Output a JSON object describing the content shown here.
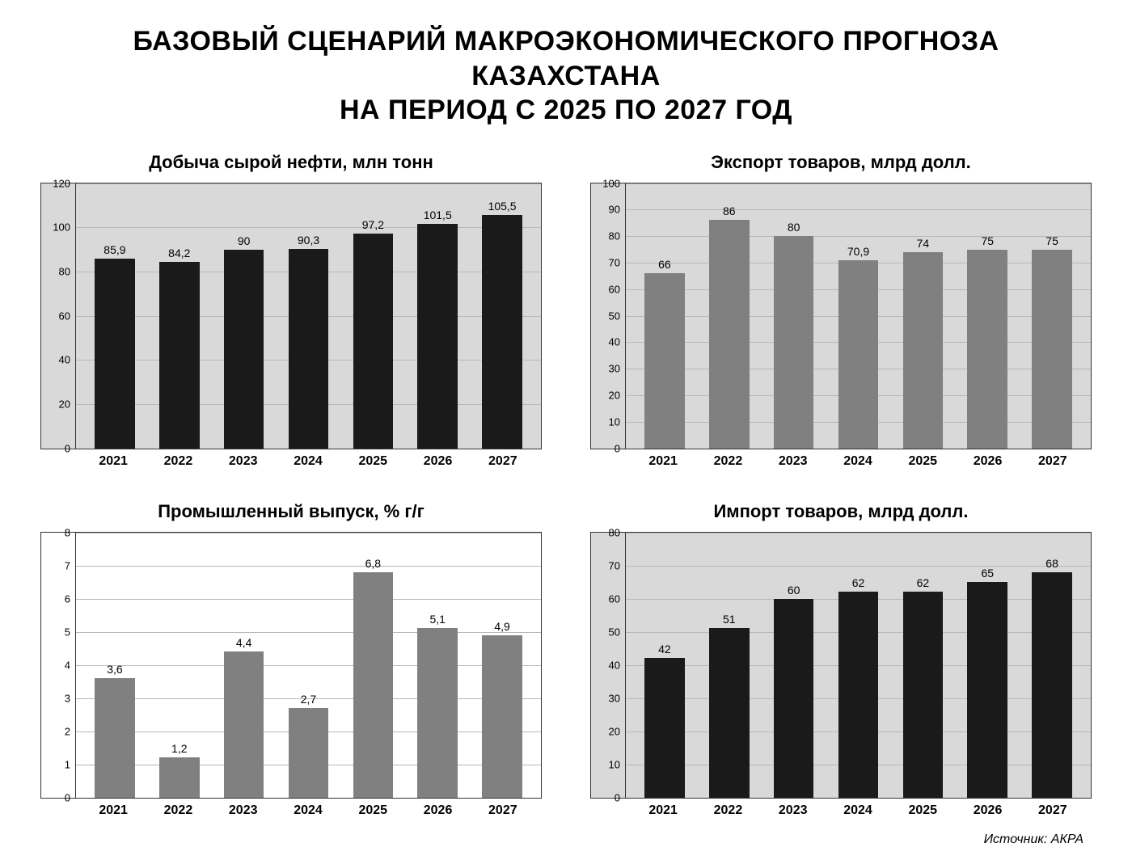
{
  "title_line1": "БАЗОВЫЙ СЦЕНАРИЙ МАКРОЭКОНОМИЧЕСКОГО ПРОГНОЗА КАЗАХСТАНА",
  "title_line2": "НА ПЕРИОД С 2025 ПО 2027 ГОД",
  "source": "Источник: АКРА",
  "categories": [
    "2021",
    "2022",
    "2023",
    "2024",
    "2025",
    "2026",
    "2027"
  ],
  "charts": [
    {
      "title": "Добыча сырой нефти, млн тонн",
      "type": "bar",
      "values": [
        85.9,
        84.2,
        90,
        90.3,
        97.2,
        101.5,
        105.5
      ],
      "labels": [
        "85,9",
        "84,2",
        "90",
        "90,3",
        "97,2",
        "101,5",
        "105,5"
      ],
      "bar_color": "#1a1a1a",
      "background_color": "#d9d9d9",
      "grid_color": "#b8b8b8",
      "ymin": 0,
      "ymax": 120,
      "ytick_step": 20,
      "label_fontsize": 14,
      "title_fontsize": 22
    },
    {
      "title": "Экспорт товаров, млрд долл.",
      "type": "bar",
      "values": [
        66,
        86,
        80,
        70.9,
        74,
        75,
        75
      ],
      "labels": [
        "66",
        "86",
        "80",
        "70,9",
        "74",
        "75",
        "75"
      ],
      "bar_color": "#808080",
      "background_color": "#d9d9d9",
      "grid_color": "#b8b8b8",
      "ymin": 0,
      "ymax": 100,
      "ytick_step": 10,
      "label_fontsize": 14,
      "title_fontsize": 22
    },
    {
      "title": "Промышленный выпуск, % г/г",
      "type": "bar",
      "values": [
        3.6,
        1.2,
        4.4,
        2.7,
        6.8,
        5.1,
        4.9
      ],
      "labels": [
        "3,6",
        "1,2",
        "4,4",
        "2,7",
        "6,8",
        "5,1",
        "4,9"
      ],
      "bar_color": "#808080",
      "background_color": "#ffffff",
      "grid_color": "#b8b8b8",
      "ymin": 0,
      "ymax": 8,
      "ytick_step": 1,
      "label_fontsize": 14,
      "title_fontsize": 22
    },
    {
      "title": "Импорт товаров, млрд долл.",
      "type": "bar",
      "values": [
        42,
        51,
        60,
        62,
        62,
        65,
        68
      ],
      "labels": [
        "42",
        "51",
        "60",
        "62",
        "62",
        "65",
        "68"
      ],
      "bar_color": "#1a1a1a",
      "background_color": "#d9d9d9",
      "grid_color": "#b8b8b8",
      "ymin": 0,
      "ymax": 80,
      "ytick_step": 10,
      "label_fontsize": 14,
      "title_fontsize": 22
    }
  ]
}
